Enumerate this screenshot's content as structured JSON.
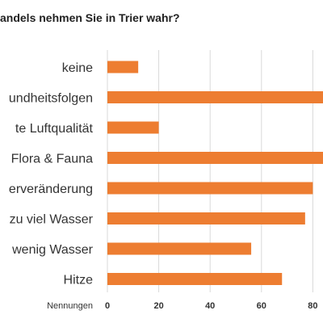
{
  "chart_data": {
    "type": "bar",
    "orientation": "horizontal",
    "title": "andels nehmen Sie in Trier wahr?",
    "categories": [
      "keine",
      "undheitsfolgen",
      "te Luftqualität",
      "Flora & Fauna",
      "erveränderung",
      "zu viel Wasser",
      "wenig Wasser",
      "Hitze"
    ],
    "values": [
      12,
      90,
      20,
      90,
      80,
      77,
      56,
      68
    ],
    "xlabel": "Nennungen",
    "ylabel": "",
    "xlim": [
      0,
      90
    ],
    "xticks": [
      0,
      20,
      40,
      60,
      80
    ],
    "grid": true,
    "legend": "none",
    "bar_color": "#ED7D31",
    "grid_color": "#D9D9D9"
  }
}
